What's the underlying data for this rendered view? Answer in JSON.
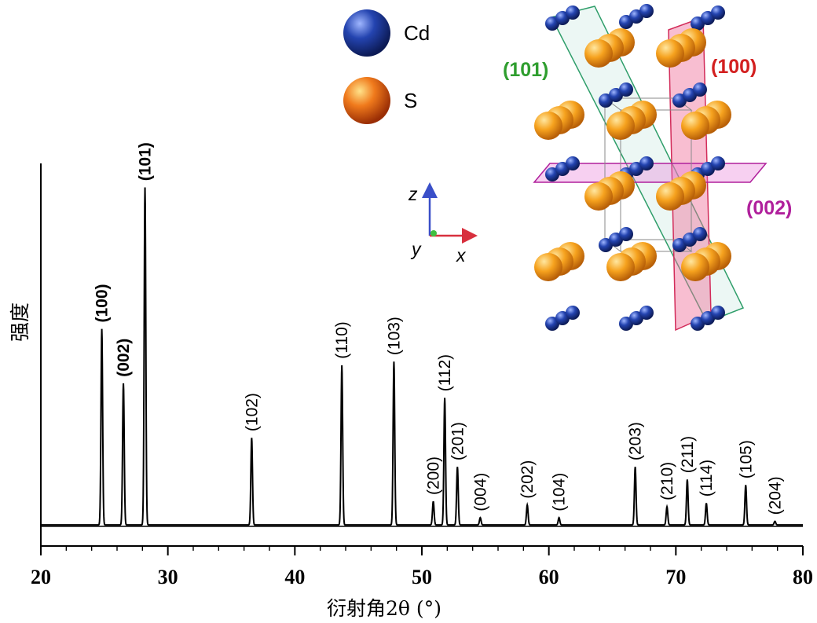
{
  "chart_data": {
    "type": "line",
    "title": "",
    "xlabel": "衍射角2θ (°)",
    "ylabel": "强度",
    "xlim": [
      20,
      80
    ],
    "ylim": [
      0,
      100
    ],
    "xticks": [
      20,
      30,
      40,
      50,
      60,
      70,
      80
    ],
    "grid": false,
    "series": [
      {
        "peaks": [
          {
            "hkl": "(100)",
            "x": 24.8,
            "y": 54,
            "color": "#d32020"
          },
          {
            "hkl": "(002)",
            "x": 26.5,
            "y": 39,
            "color": "#b0209c"
          },
          {
            "hkl": "(101)",
            "x": 28.2,
            "y": 93,
            "color": "#2f9e2f"
          },
          {
            "hkl": "(102)",
            "x": 36.6,
            "y": 24,
            "color": "#000000"
          },
          {
            "hkl": "(110)",
            "x": 43.7,
            "y": 44,
            "color": "#000000"
          },
          {
            "hkl": "(103)",
            "x": 47.8,
            "y": 45,
            "color": "#000000"
          },
          {
            "hkl": "(200)",
            "x": 50.9,
            "y": 6.5,
            "color": "#000000"
          },
          {
            "hkl": "(112)",
            "x": 51.8,
            "y": 35,
            "color": "#000000"
          },
          {
            "hkl": "(201)",
            "x": 52.8,
            "y": 16,
            "color": "#000000"
          },
          {
            "hkl": "(004)",
            "x": 54.6,
            "y": 2,
            "color": "#000000"
          },
          {
            "hkl": "(202)",
            "x": 58.3,
            "y": 5.5,
            "color": "#000000"
          },
          {
            "hkl": "(104)",
            "x": 60.8,
            "y": 2,
            "color": "#000000"
          },
          {
            "hkl": "(203)",
            "x": 66.8,
            "y": 16,
            "color": "#000000"
          },
          {
            "hkl": "(210)",
            "x": 69.3,
            "y": 5,
            "color": "#000000"
          },
          {
            "hkl": "(211)",
            "x": 70.9,
            "y": 12.5,
            "color": "#000000"
          },
          {
            "hkl": "(114)",
            "x": 72.4,
            "y": 6,
            "color": "#000000"
          },
          {
            "hkl": "(105)",
            "x": 75.5,
            "y": 11,
            "color": "#000000"
          },
          {
            "hkl": "(204)",
            "x": 77.8,
            "y": 1,
            "color": "#000000"
          }
        ]
      }
    ]
  },
  "inset": {
    "legend": [
      {
        "label": "Cd",
        "color": "#1e3a9a"
      },
      {
        "label": "S",
        "color": "#e8561a"
      }
    ],
    "axes_triad": {
      "z": "z",
      "y": "y",
      "x": "x"
    },
    "planes": [
      {
        "label": "(101)",
        "color": "#2f9e2f"
      },
      {
        "label": "(100)",
        "color": "#d32020"
      },
      {
        "label": "(002)",
        "color": "#b0209c"
      }
    ]
  }
}
